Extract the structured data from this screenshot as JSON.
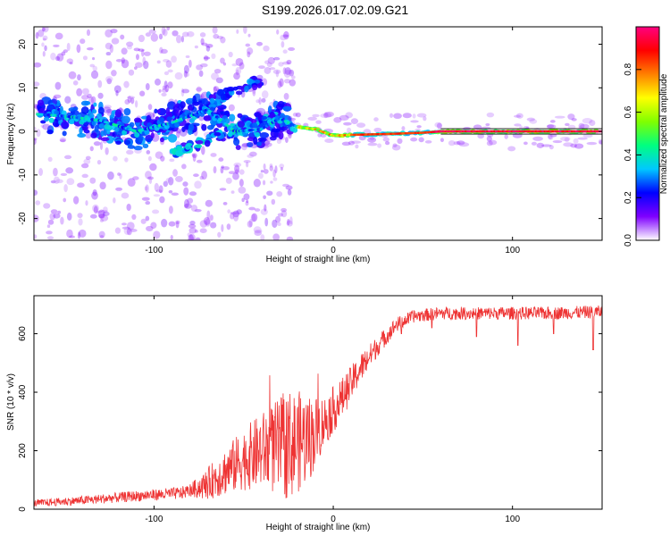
{
  "title": "S199.2026.017.02.09.G21",
  "chart_data": [
    {
      "type": "heatmap",
      "xlabel": "Height of straight line (km)",
      "ylabel": "Frequency (Hz)",
      "xlim": [
        -167,
        150
      ],
      "ylim": [
        -25,
        24
      ],
      "xticks": [
        -100,
        0,
        100
      ],
      "yticks": [
        -20,
        -10,
        0,
        10,
        20
      ],
      "xtick_labels": [
        "-100",
        "0",
        "100"
      ],
      "ytick_labels": [
        "-20",
        "-10",
        "0",
        "10",
        "20"
      ],
      "colorbar": {
        "label": "Normalized spectral amplitude",
        "range": [
          0,
          1
        ],
        "ticks": [
          0,
          0.2,
          0.4,
          0.6,
          0.8
        ],
        "tick_labels": [
          "0.0",
          "0.2",
          "0.4",
          "0.6",
          "0.8"
        ],
        "colormap": [
          "#ffffff",
          "#7f00ff",
          "#0000ff",
          "#00c8ff",
          "#00ff80",
          "#80ff00",
          "#ffff00",
          "#ff8000",
          "#ff0000",
          "#ff0080"
        ]
      },
      "ridge_track": [
        {
          "x": -167,
          "f": 4
        },
        {
          "x": -150,
          "f": 3.5
        },
        {
          "x": -130,
          "f": 2.5
        },
        {
          "x": -110,
          "f": 0
        },
        {
          "x": -90,
          "f": 2
        },
        {
          "x": -70,
          "f": 5
        },
        {
          "x": -55,
          "f": 0
        },
        {
          "x": -40,
          "f": 0.5
        },
        {
          "x": -30,
          "f": 3
        },
        {
          "x": -20,
          "f": 1
        },
        {
          "x": -10,
          "f": 0.5
        },
        {
          "x": 0,
          "f": -1
        },
        {
          "x": 10,
          "f": -0.8
        },
        {
          "x": 30,
          "f": -0.6
        },
        {
          "x": 50,
          "f": -0.3
        },
        {
          "x": 60,
          "f": 0
        },
        {
          "x": 100,
          "f": 0
        },
        {
          "x": 150,
          "f": 0
        }
      ]
    },
    {
      "type": "line",
      "xlabel": "Height of straight line (km)",
      "ylabel": "SNR (10 * v/v)",
      "xlim": [
        -167,
        150
      ],
      "ylim": [
        0,
        730
      ],
      "xticks": [
        -100,
        0,
        100
      ],
      "yticks": [
        0,
        200,
        400,
        600
      ],
      "xtick_labels": [
        "-100",
        "0",
        "100"
      ],
      "ytick_labels": [
        "0",
        "200",
        "400",
        "600"
      ],
      "series": [
        {
          "name": "SNR",
          "color": "#ee3333",
          "trend": {
            "x": [
              -167,
              -140,
              -110,
              -85,
              -72,
              -60,
              -50,
              -40,
              -30,
              -20,
              -12,
              -5,
              5,
              15,
              25,
              35,
              45,
              60,
              80,
              100,
              120,
              150
            ],
            "y": [
              20,
              30,
              45,
              55,
              80,
              130,
              170,
              200,
              210,
              230,
              250,
              300,
              380,
              480,
              560,
              630,
              660,
              670,
              670,
              670,
              670,
              675
            ]
          },
          "noise": {
            "x": [
              -167,
              -80,
              -65,
              -40,
              -25,
              -15,
              -5,
              10,
              25,
              40,
              150
            ],
            "amplitude": [
              12,
              22,
              70,
              130,
              190,
              160,
              90,
              60,
              35,
              22,
              22
            ]
          },
          "dips": [
            {
              "x": 80,
              "y": 590
            },
            {
              "x": 103,
              "y": 560
            },
            {
              "x": 123,
              "y": 600
            },
            {
              "x": 145,
              "y": 545
            },
            {
              "x": 38,
              "y": 600
            },
            {
              "x": 55,
              "y": 620
            }
          ]
        }
      ]
    }
  ]
}
